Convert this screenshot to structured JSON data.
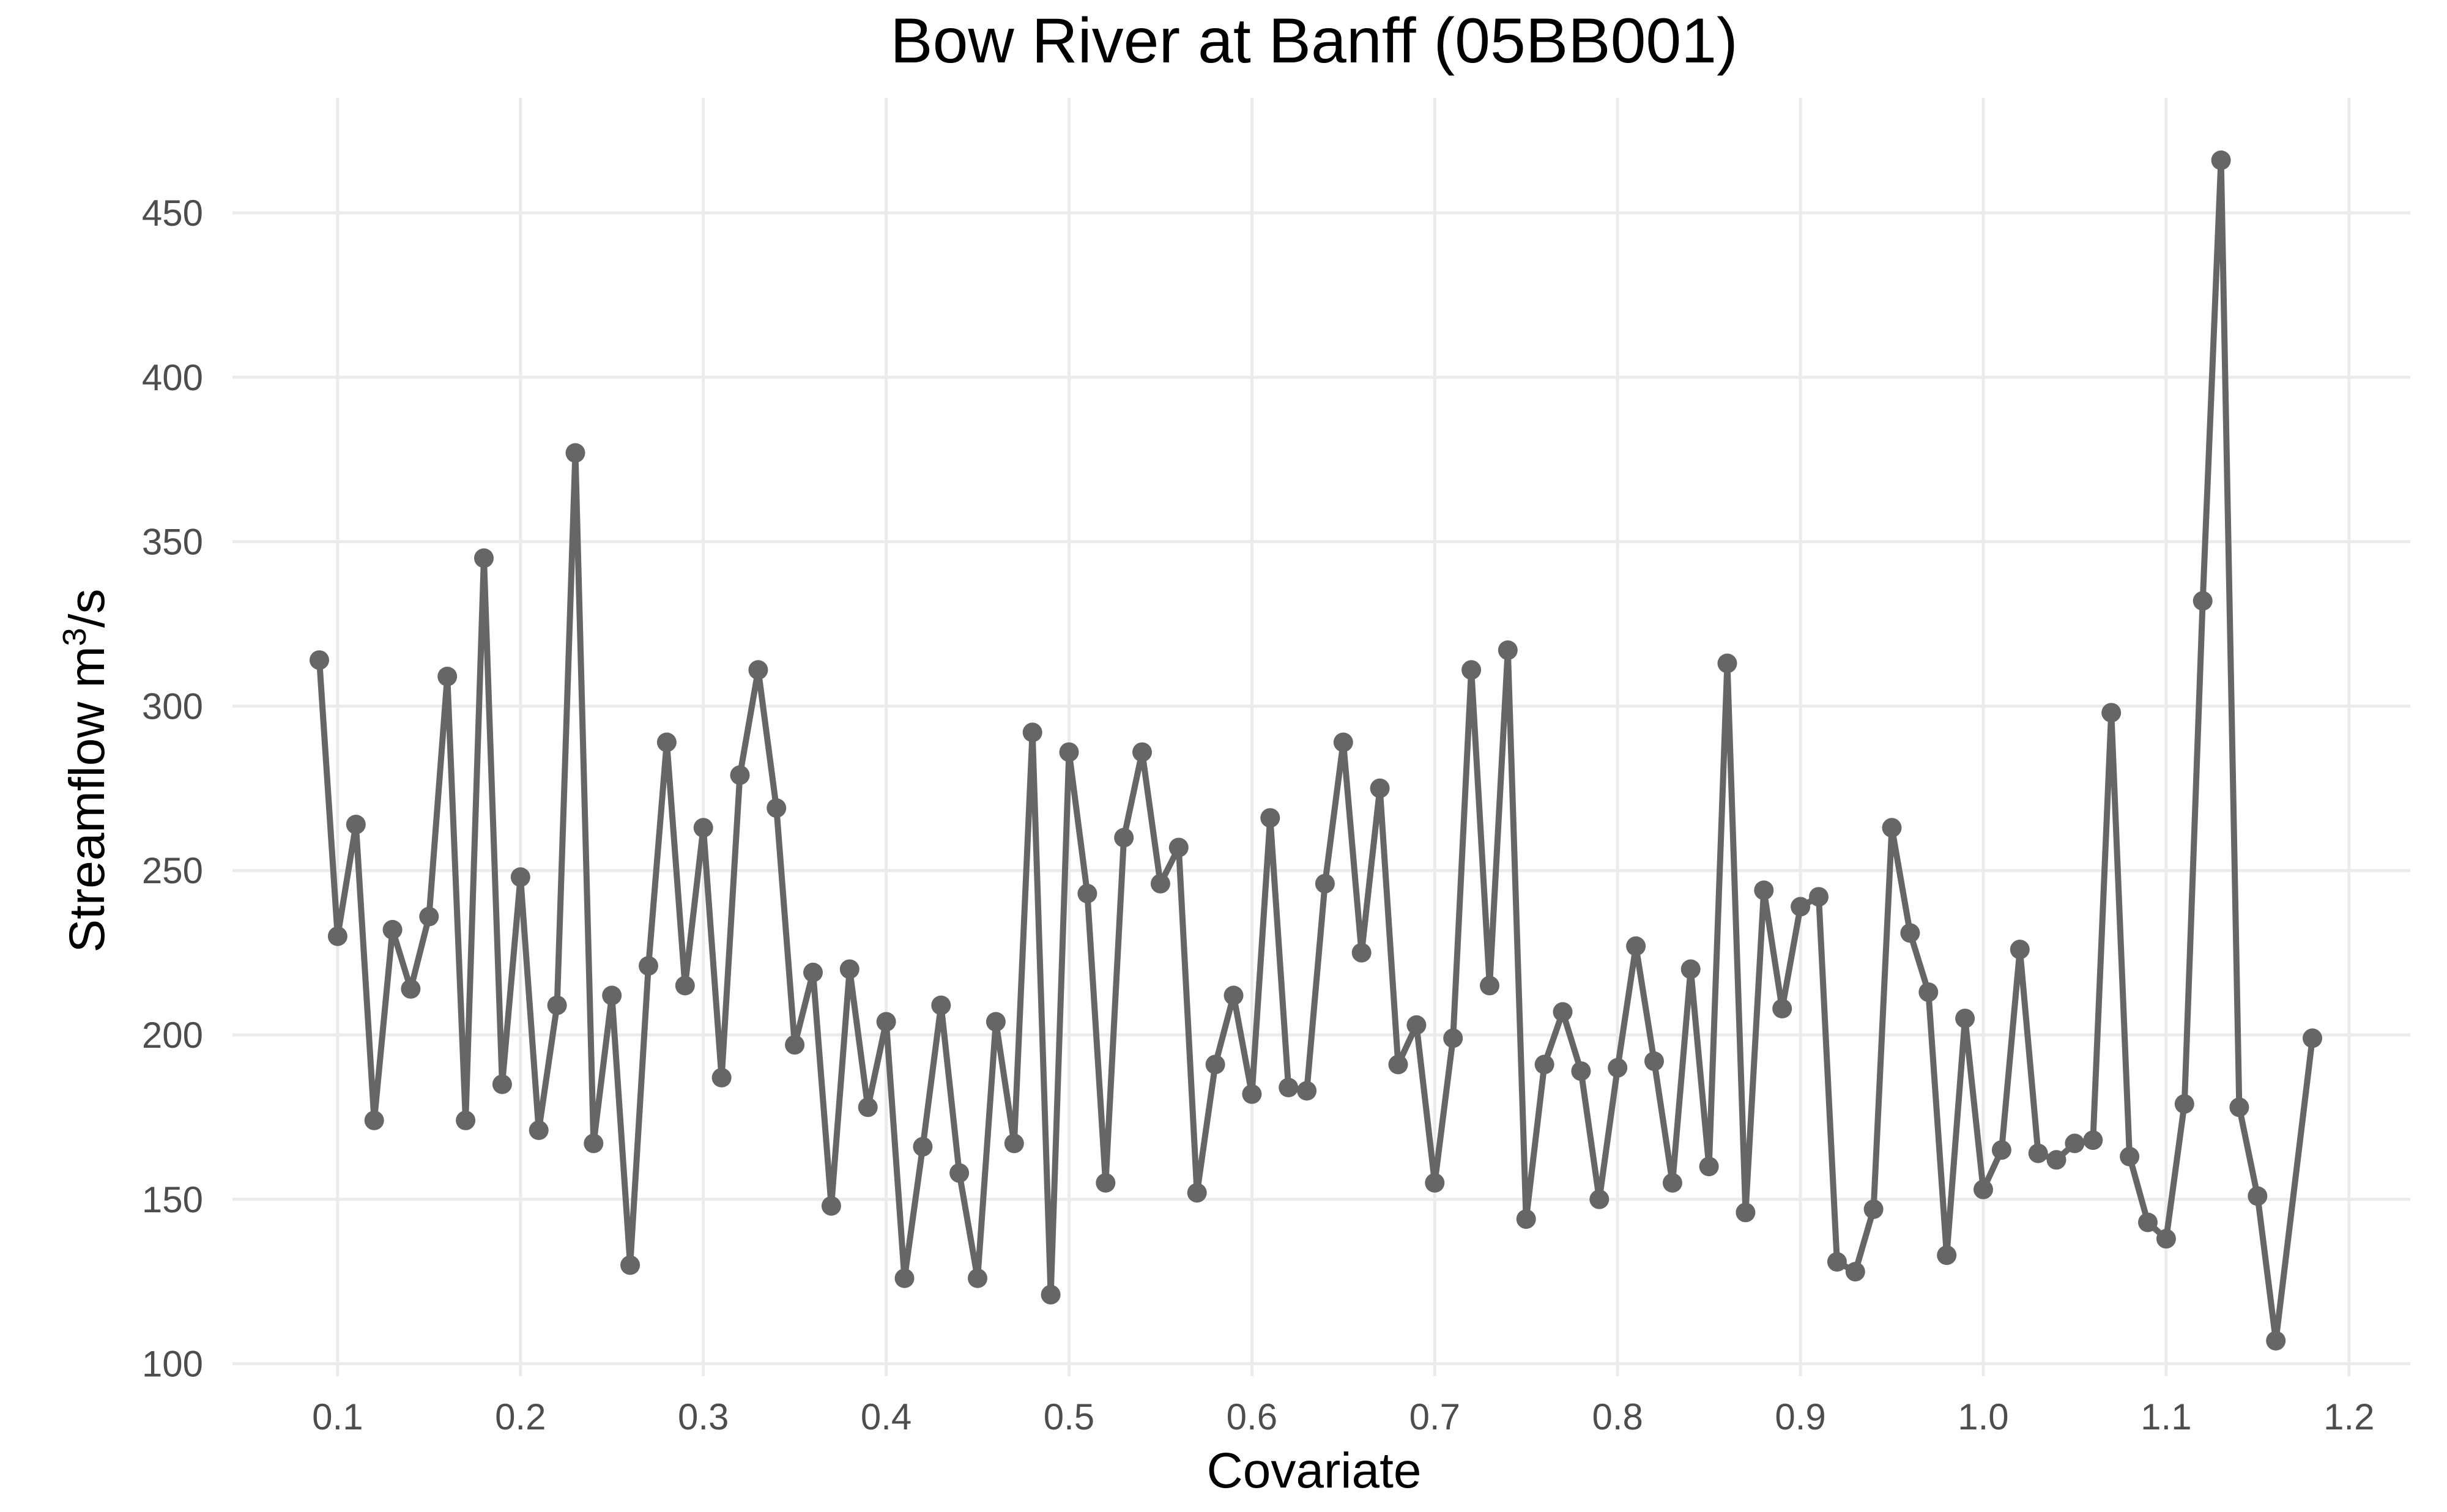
{
  "chart_data": {
    "type": "line",
    "title": "Bow River at Banff (05BB001)",
    "xlabel": "Covariate",
    "ylabel_main": "Streamflow m",
    "ylabel_sup": "3",
    "ylabel_tail": "/s",
    "xlim": [
      0.09,
      1.18
    ],
    "ylim": [
      107,
      466
    ],
    "x_ticks": [
      "0.1",
      "0.2",
      "0.3",
      "0.4",
      "0.5",
      "0.6",
      "0.7",
      "0.8",
      "0.9",
      "1.0",
      "1.1",
      "1.2"
    ],
    "y_ticks": [
      "100",
      "150",
      "200",
      "250",
      "300",
      "350",
      "400",
      "450"
    ],
    "grid": true,
    "legend": "none",
    "colors": {
      "series": "#666666",
      "grid": "#ebebeb"
    },
    "series": [
      {
        "x": [
          0.09,
          0.1,
          0.11,
          0.12,
          0.13,
          0.14,
          0.15,
          0.16,
          0.17,
          0.18,
          0.19,
          0.2,
          0.21,
          0.22,
          0.23,
          0.24,
          0.25,
          0.26,
          0.27,
          0.28,
          0.29,
          0.3,
          0.31,
          0.32,
          0.33,
          0.34,
          0.35,
          0.36,
          0.37,
          0.38,
          0.39,
          0.4,
          0.41,
          0.42,
          0.43,
          0.44,
          0.45,
          0.46,
          0.47,
          0.48,
          0.49,
          0.5,
          0.51,
          0.52,
          0.53,
          0.54,
          0.55,
          0.56,
          0.57,
          0.58,
          0.59,
          0.6,
          0.61,
          0.62,
          0.63,
          0.64,
          0.65,
          0.66,
          0.67,
          0.68,
          0.69,
          0.7,
          0.71,
          0.72,
          0.73,
          0.74,
          0.75,
          0.76,
          0.77,
          0.78,
          0.79,
          0.8,
          0.81,
          0.82,
          0.83,
          0.84,
          0.85,
          0.86,
          0.87,
          0.88,
          0.89,
          0.9,
          0.91,
          0.92,
          0.93,
          0.94,
          0.95,
          0.96,
          0.97,
          0.98,
          0.99,
          1.0,
          1.01,
          1.02,
          1.03,
          1.04,
          1.05,
          1.06,
          1.07,
          1.08,
          1.09,
          1.1,
          1.11,
          1.12,
          1.13,
          1.14,
          1.15,
          1.16,
          1.18
        ],
        "y": [
          314,
          230,
          264,
          174,
          232,
          214,
          236,
          309,
          174,
          345,
          185,
          248,
          171,
          209,
          377,
          167,
          212,
          130,
          221,
          289,
          215,
          263,
          187,
          279,
          311,
          269,
          197,
          219,
          148,
          220,
          178,
          204,
          126,
          166,
          209,
          158,
          126,
          204,
          167,
          292,
          121,
          286,
          243,
          155,
          260,
          286,
          246,
          257,
          152,
          191,
          212,
          182,
          266,
          184,
          183,
          246,
          289,
          225,
          275,
          191,
          203,
          155,
          199,
          311,
          215,
          317,
          144,
          191,
          207,
          189,
          150,
          190,
          227,
          192,
          155,
          220,
          160,
          313,
          146,
          244,
          208,
          239,
          242,
          131,
          128,
          147,
          263,
          231,
          213,
          133,
          205,
          153,
          165,
          226,
          164,
          162,
          167,
          168,
          298,
          163,
          143,
          138,
          179,
          332,
          466,
          178,
          151,
          107,
          199
        ]
      }
    ]
  }
}
